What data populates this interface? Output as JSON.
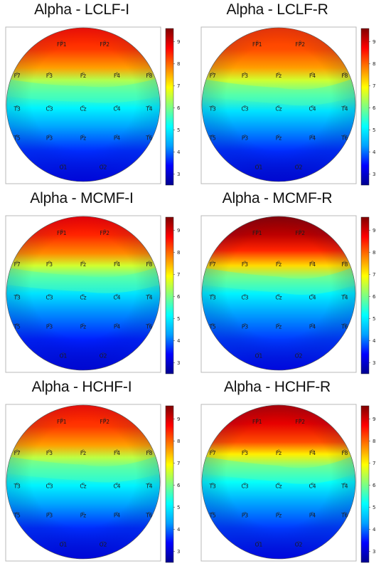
{
  "panels": [
    {
      "title": "Alpha - LCLF-I"
    },
    {
      "title": "Alpha - LCLF-R"
    },
    {
      "title": "Alpha - MCMF-I"
    },
    {
      "title": "Alpha - MCMF-R"
    },
    {
      "title": "Alpha - HCHF-I"
    },
    {
      "title": "Alpha - HCHF-R"
    }
  ],
  "electrodes": [
    "FP1",
    "FP2",
    "F7",
    "F3",
    "Fz",
    "F4",
    "F8",
    "T3",
    "C3",
    "Cz",
    "C4",
    "T4",
    "T5",
    "P3",
    "Pz",
    "P4",
    "T6",
    "O1",
    "O2"
  ],
  "colorbar": {
    "ticks": [
      "3",
      "4",
      "5",
      "6",
      "7",
      "8",
      "9"
    ],
    "range": [
      2.5,
      9.6
    ]
  },
  "colormap": [
    "#00008f",
    "#0000ff",
    "#00a0ff",
    "#00ffff",
    "#80ff80",
    "#ffff00",
    "#ff8000",
    "#ff0000",
    "#800000"
  ]
}
